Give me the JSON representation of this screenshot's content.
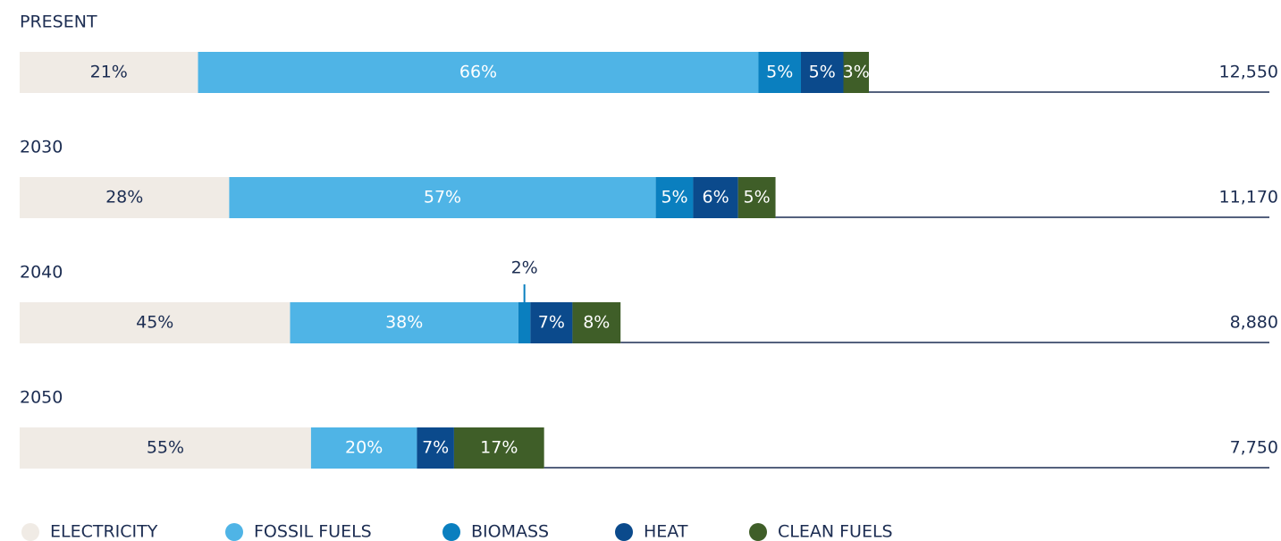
{
  "chart_data": {
    "type": "stacked-bar-horizontal",
    "categories": [
      "PRESENT",
      "2030",
      "2040",
      "2050"
    ],
    "series": [
      {
        "name": "ELECTRICITY",
        "color": "#f0ebe5",
        "values": [
          21,
          28,
          45,
          55
        ],
        "value_labels": [
          "21%",
          "28%",
          "45%",
          "55%"
        ]
      },
      {
        "name": "FOSSIL FUELS",
        "color": "#4fb4e6",
        "values": [
          66,
          57,
          38,
          20
        ],
        "value_labels": [
          "66%",
          "57%",
          "38%",
          "20%"
        ]
      },
      {
        "name": "BIOMASS",
        "color": "#0a7fbf",
        "values": [
          5,
          5,
          2,
          null
        ],
        "value_labels": [
          "5%",
          "5%",
          "2%",
          null
        ]
      },
      {
        "name": "HEAT",
        "color": "#0b4a8c",
        "values": [
          5,
          6,
          7,
          7
        ],
        "value_labels": [
          "5%",
          "6%",
          "7%",
          "7%"
        ]
      },
      {
        "name": "CLEAN FUELS",
        "color": "#3f5e28",
        "values": [
          3,
          5,
          8,
          17
        ],
        "value_labels": [
          "3%",
          "5%",
          "8%",
          "17%"
        ]
      }
    ],
    "totals": {
      "values": [
        12550,
        11170,
        8880,
        7750
      ],
      "value_labels": [
        "12,550",
        "11,170",
        "8,880",
        "7,750"
      ]
    },
    "legend": "bottom-left"
  }
}
